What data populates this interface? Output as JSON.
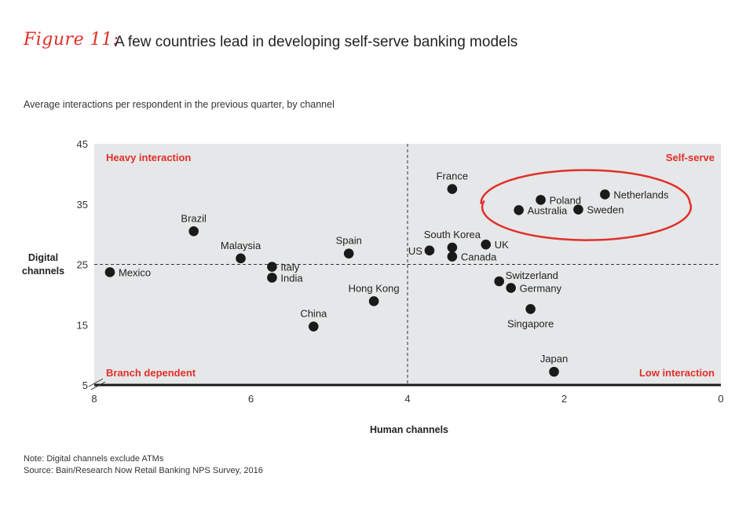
{
  "header": {
    "figure_label": "Figure 11:",
    "title": "A few countries lead in developing self-serve banking models",
    "subtitle": "Average interactions per respondent in the previous quarter, by channel"
  },
  "notes": {
    "note": "Note: Digital channels exclude ATMs",
    "source": "Source: Bain/Research Now Retail Banking NPS Survey, 2016"
  },
  "colors": {
    "accent": "#e0302a",
    "plot_bg": "#e6e7e8",
    "point": "#1a1a1a",
    "axis": "#1a1a1a"
  },
  "chart_data": {
    "type": "scatter",
    "xlabel": "Human channels",
    "ylabel": [
      "Digital",
      "channels"
    ],
    "xlim": [
      8,
      0
    ],
    "ylim": [
      5,
      45
    ],
    "xticks": [
      "8",
      "6",
      "4",
      "2",
      "0"
    ],
    "xtick_values": [
      8,
      6,
      4,
      2,
      0
    ],
    "yticks": [
      "5",
      "15",
      "25",
      "35",
      "45"
    ],
    "ytick_values": [
      5,
      15,
      25,
      35,
      45
    ],
    "divider_x": 4,
    "divider_y": 25,
    "quadrant_labels": {
      "top_left": "Heavy interaction",
      "top_right": "Self-serve",
      "bottom_left": "Branch dependent",
      "bottom_right": "Low interaction"
    },
    "highlight_group": [
      "Poland",
      "Australia",
      "Sweden",
      "Netherlands"
    ],
    "points": [
      {
        "label": "Mexico",
        "x": 7.8,
        "y": 23.7,
        "anchor": "right"
      },
      {
        "label": "Brazil",
        "x": 6.73,
        "y": 30.5,
        "anchor": "above"
      },
      {
        "label": "Malaysia",
        "x": 6.13,
        "y": 26.0,
        "anchor": "above"
      },
      {
        "label": "Italy",
        "x": 5.73,
        "y": 24.6,
        "anchor": "right"
      },
      {
        "label": "India",
        "x": 5.73,
        "y": 22.8,
        "anchor": "right"
      },
      {
        "label": "China",
        "x": 5.2,
        "y": 14.7,
        "anchor": "above"
      },
      {
        "label": "Spain",
        "x": 4.75,
        "y": 26.8,
        "anchor": "above"
      },
      {
        "label": "Hong Kong",
        "x": 4.43,
        "y": 18.9,
        "anchor": "above"
      },
      {
        "label": "US",
        "x": 3.72,
        "y": 27.3,
        "anchor": "left"
      },
      {
        "label": "France",
        "x": 3.43,
        "y": 37.5,
        "anchor": "above"
      },
      {
        "label": "South Korea",
        "x": 3.43,
        "y": 27.8,
        "anchor": "above"
      },
      {
        "label": "Canada",
        "x": 3.43,
        "y": 26.3,
        "anchor": "right"
      },
      {
        "label": "UK",
        "x": 3.0,
        "y": 28.3,
        "anchor": "right"
      },
      {
        "label": "Switzerland",
        "x": 2.83,
        "y": 22.2,
        "anchor": "right-up"
      },
      {
        "label": "Germany",
        "x": 2.68,
        "y": 21.1,
        "anchor": "right"
      },
      {
        "label": "Singapore",
        "x": 2.43,
        "y": 17.6,
        "anchor": "below"
      },
      {
        "label": "Japan",
        "x": 2.13,
        "y": 7.2,
        "anchor": "above"
      },
      {
        "label": "Poland",
        "x": 2.3,
        "y": 35.7,
        "anchor": "right"
      },
      {
        "label": "Australia",
        "x": 2.58,
        "y": 34.0,
        "anchor": "right"
      },
      {
        "label": "Sweden",
        "x": 1.82,
        "y": 34.1,
        "anchor": "right"
      },
      {
        "label": "Netherlands",
        "x": 1.48,
        "y": 36.6,
        "anchor": "right"
      }
    ]
  }
}
